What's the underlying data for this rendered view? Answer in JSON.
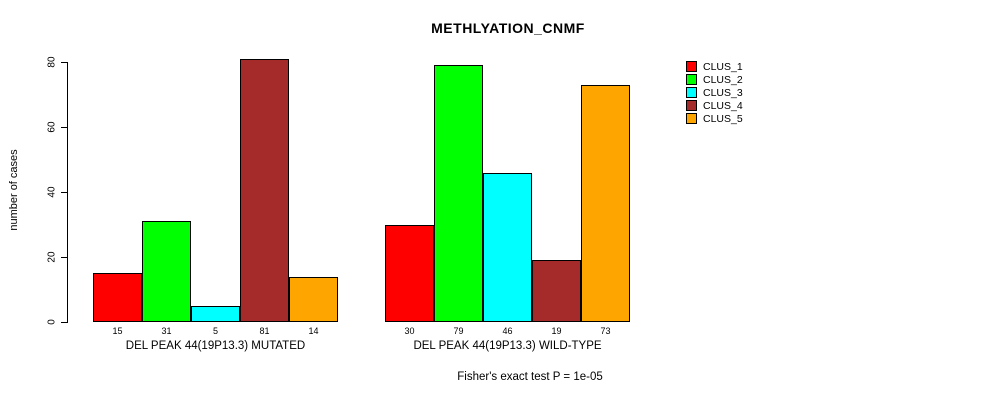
{
  "title": "METHLYATION_CNMF",
  "footer": "Fisher's exact test P = 1e-05",
  "chart_data": {
    "type": "bar",
    "title": "METHLYATION_CNMF",
    "xlabel": "",
    "ylabel": "number of cases",
    "ylim": [
      0,
      80
    ],
    "yticks": [
      0,
      20,
      40,
      60,
      80
    ],
    "grid": false,
    "legend_position": "right",
    "legend": [
      {
        "name": "CLUS_1",
        "color": "#FF0000"
      },
      {
        "name": "CLUS_2",
        "color": "#00FF00"
      },
      {
        "name": "CLUS_3",
        "color": "#00FFFF"
      },
      {
        "name": "CLUS_4",
        "color": "#A52A2A"
      },
      {
        "name": "CLUS_5",
        "color": "#FFA500"
      }
    ],
    "groups": [
      {
        "label": "DEL PEAK 44(19P13.3) MUTATED",
        "series": [
          "CLUS_1",
          "CLUS_2",
          "CLUS_3",
          "CLUS_4",
          "CLUS_5"
        ],
        "values": [
          15,
          31,
          5,
          81,
          14
        ]
      },
      {
        "label": "DEL PEAK 44(19P13.3) WILD-TYPE",
        "series": [
          "CLUS_1",
          "CLUS_2",
          "CLUS_3",
          "CLUS_4",
          "CLUS_5"
        ],
        "values": [
          30,
          79,
          46,
          19,
          73
        ]
      }
    ],
    "annotation": "Fisher's exact test P = 1e-05"
  }
}
